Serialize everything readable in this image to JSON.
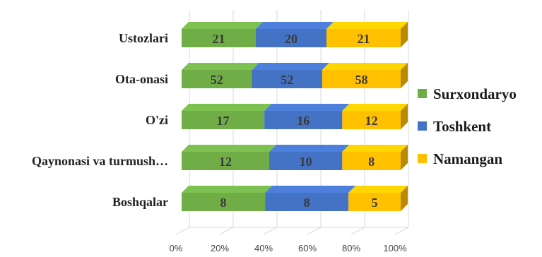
{
  "chart_data": {
    "type": "bar",
    "orientation": "horizontal",
    "stacked": "percent",
    "three_d": true,
    "categories": [
      "Ustozlari",
      "Ota-onasi",
      "O'zi",
      "Qaynonasi va turmush…",
      "Boshqalar"
    ],
    "series": [
      {
        "name": "Surxondaryo",
        "color": "#70ad47",
        "values": [
          21,
          52,
          17,
          12,
          8
        ]
      },
      {
        "name": "Toshkent",
        "color": "#4472c4",
        "values": [
          20,
          52,
          16,
          10,
          8
        ]
      },
      {
        "name": "Namangan",
        "color": "#ffc000",
        "values": [
          21,
          58,
          12,
          8,
          5
        ]
      }
    ],
    "x_ticks": [
      "0%",
      "20%",
      "40%",
      "60%",
      "80%",
      "100%"
    ],
    "xlim": [
      0,
      100
    ],
    "grid": true,
    "legend_position": "right"
  }
}
